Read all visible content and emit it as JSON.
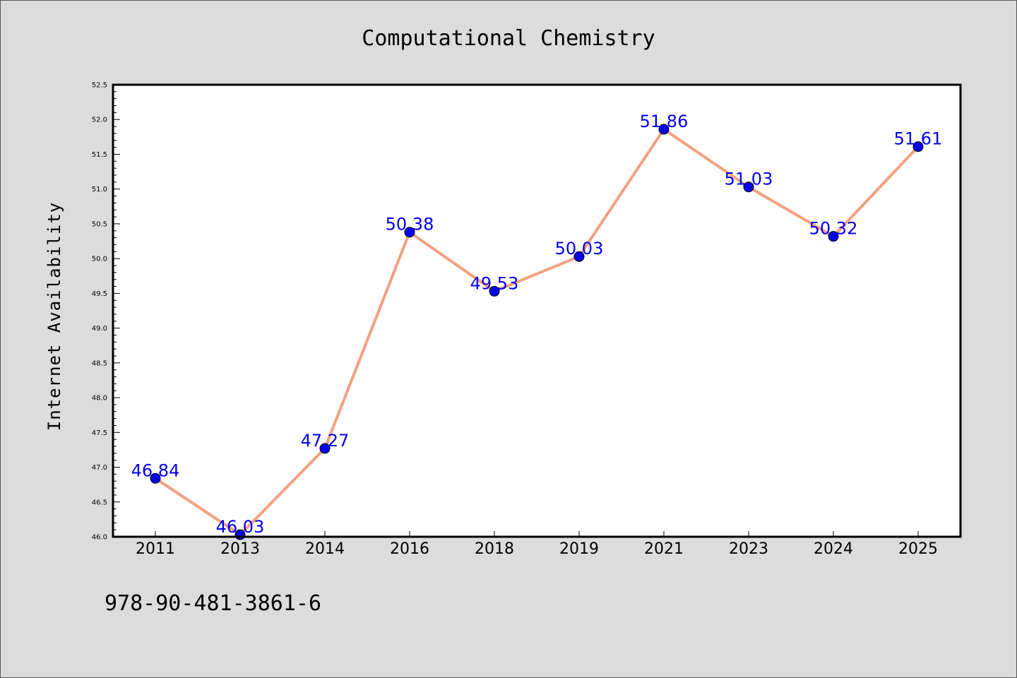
{
  "chart_data": {
    "type": "line",
    "title": "Computational Chemistry",
    "xlabel": "",
    "ylabel": "Internet Availability",
    "categories": [
      "2011",
      "2013",
      "2014",
      "2016",
      "2018",
      "2019",
      "2021",
      "2023",
      "2024",
      "2025"
    ],
    "series": [
      {
        "values": [
          46.84,
          46.03,
          47.27,
          50.38,
          49.53,
          50.03,
          51.86,
          51.03,
          50.32,
          51.61
        ],
        "data_labels": [
          "46.84",
          "46.03",
          "47.27",
          "50.38",
          "49.53",
          "50.03",
          "51.86",
          "51.03",
          "50.32",
          "51.61"
        ],
        "line_color": "#f4a07e",
        "marker_color": "#0000ee",
        "label_color": "#0000ee"
      }
    ],
    "ylim": [
      46.0,
      52.5
    ],
    "yticks": [
      "46.0",
      "46.5",
      "47.0",
      "47.5",
      "48.0",
      "48.5",
      "49.0",
      "49.5",
      "50.0",
      "50.5",
      "51.0",
      "51.5",
      "52.0",
      "52.5"
    ],
    "grid": false,
    "legend": "none",
    "annotation": "978-90-481-3861-6"
  },
  "colors": {
    "background": "#dcdcdc",
    "plot_area": "#ffffff"
  }
}
